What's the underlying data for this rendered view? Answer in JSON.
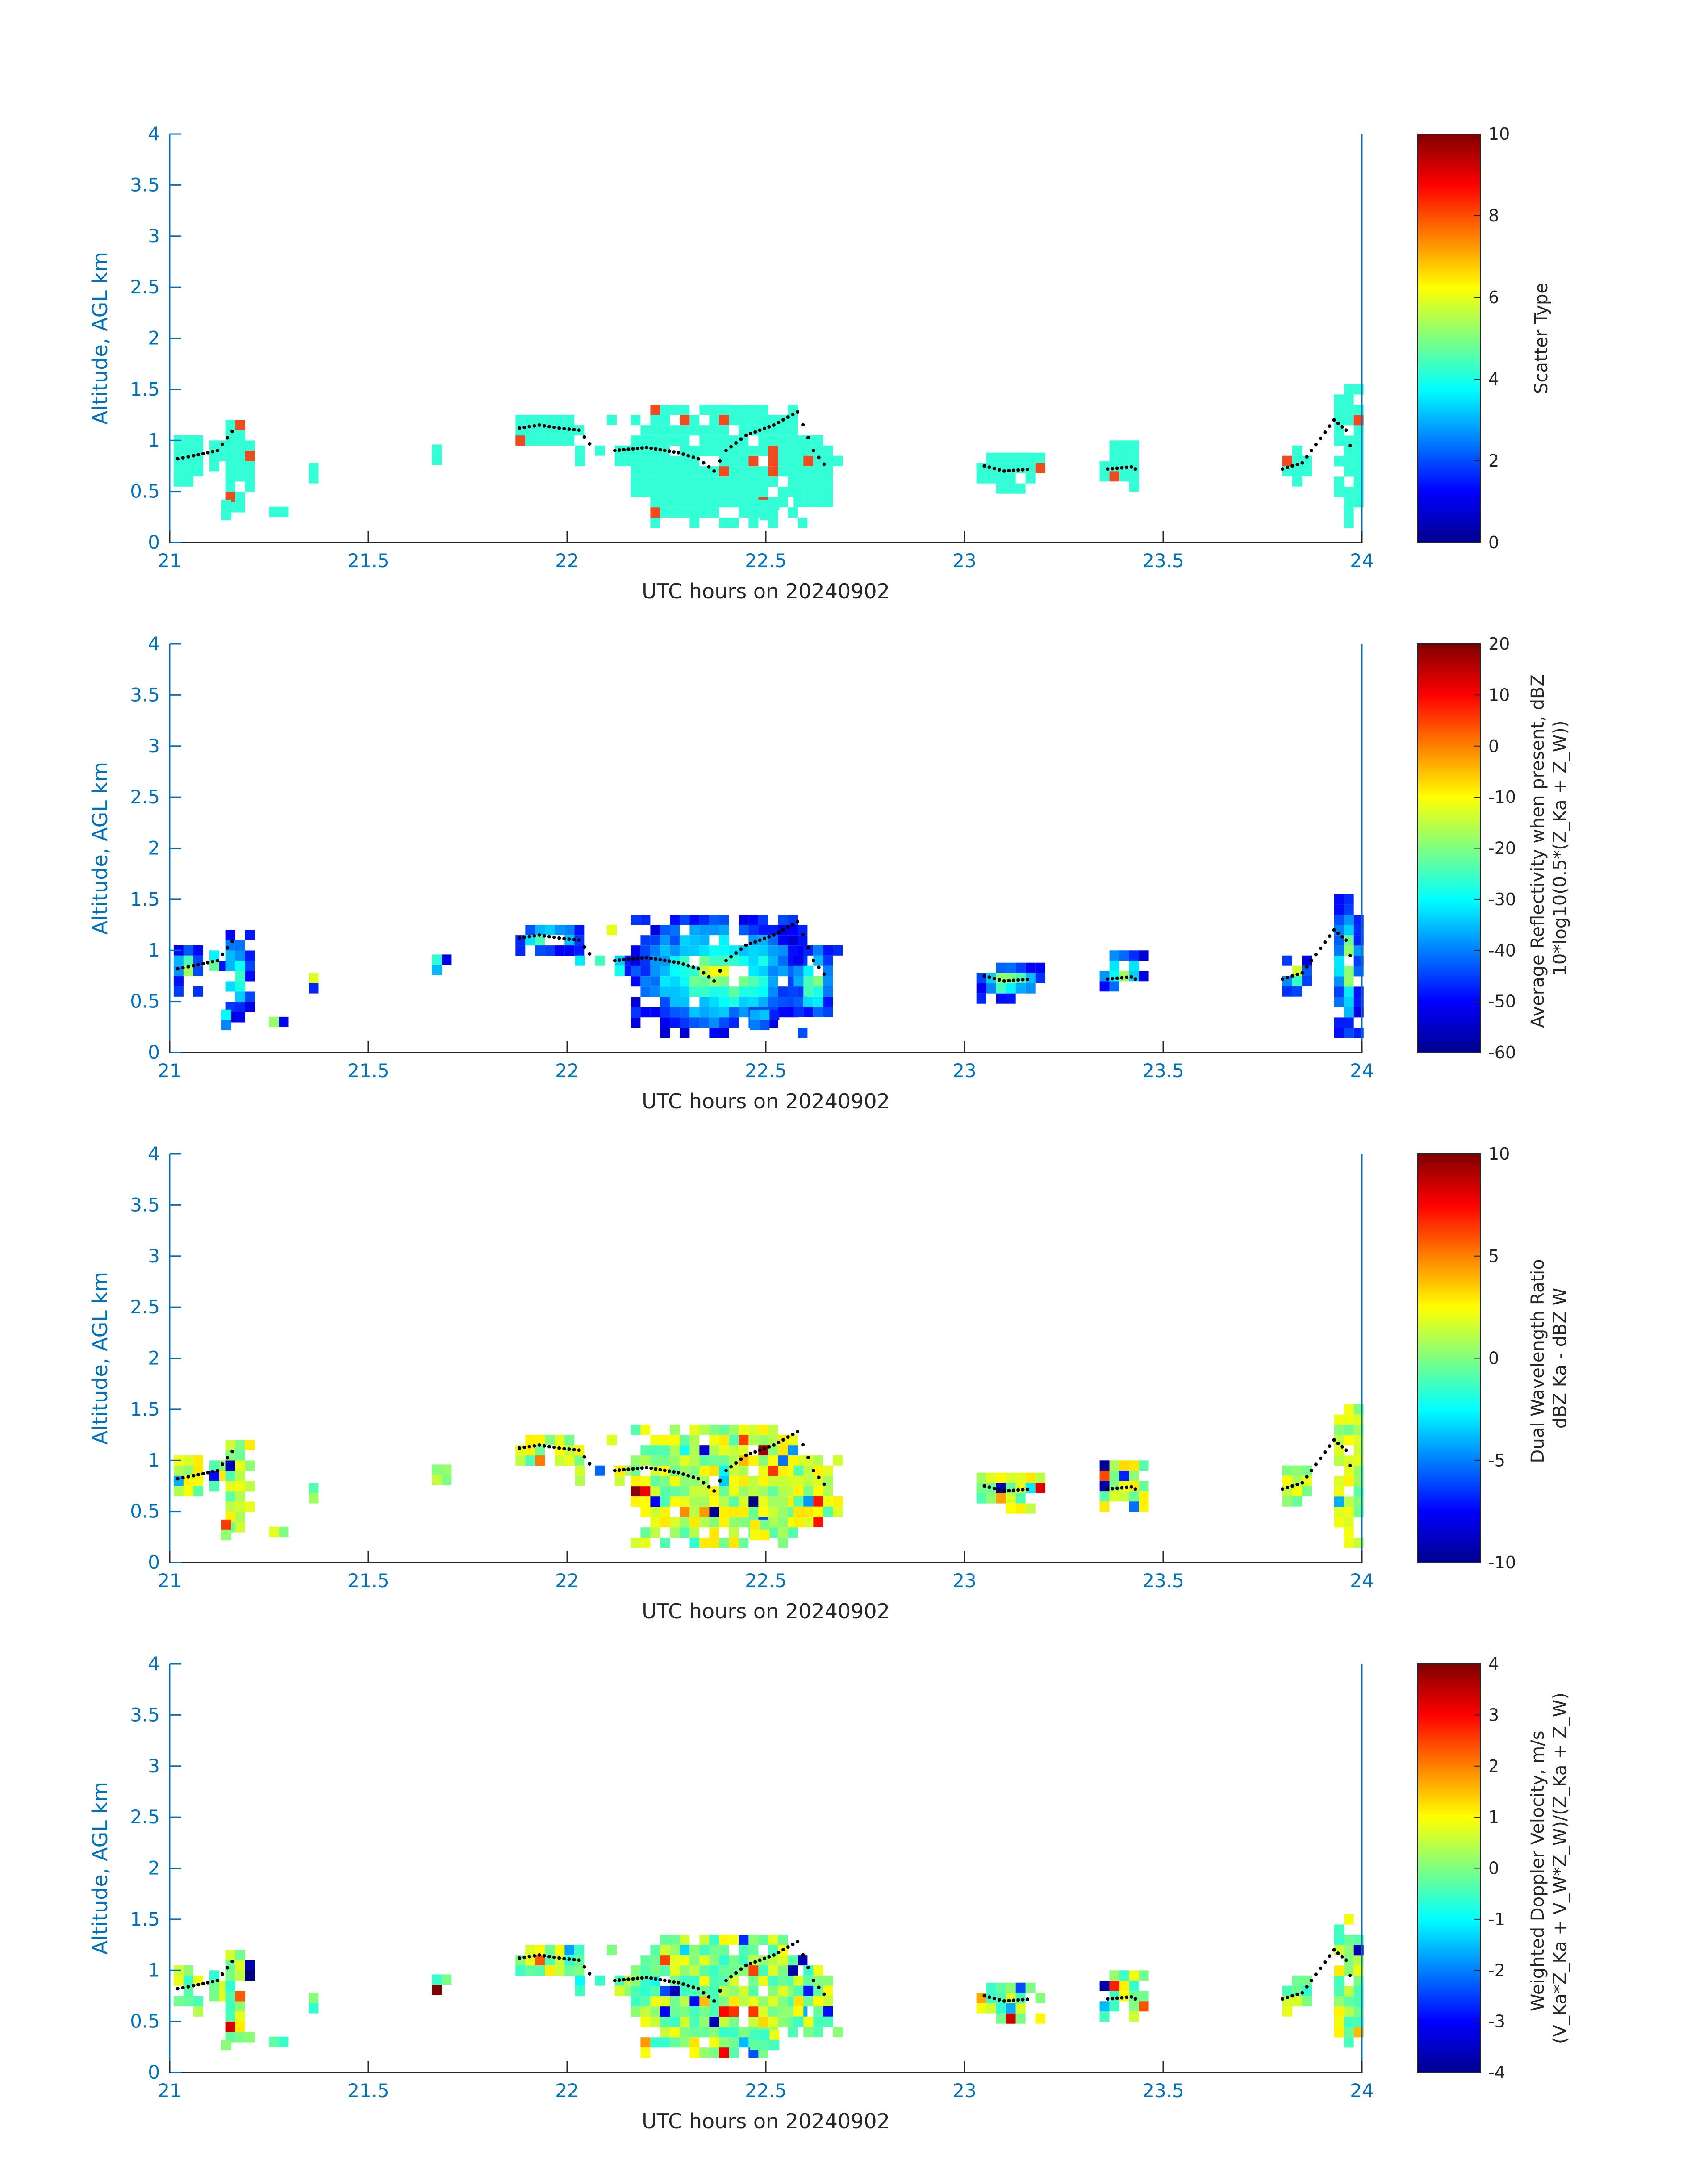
{
  "chart_data": [
    {
      "type": "heatmap",
      "xlabel": "UTC hours on 20240902",
      "ylabel": "Altitude, AGL km",
      "xlim": [
        21,
        24
      ],
      "ylim": [
        0,
        4
      ],
      "xticks": [
        "21",
        "21.5",
        "22",
        "22.5",
        "23",
        "23.5",
        "24"
      ],
      "yticks": [
        "0",
        "0.5",
        "1",
        "1.5",
        "2",
        "2.5",
        "3",
        "3.5",
        "4"
      ],
      "colorbar": {
        "label_lines": [
          "Scatter Type"
        ],
        "limits": [
          0,
          10
        ],
        "ticks": [
          "0",
          "2",
          "4",
          "6",
          "8",
          "10"
        ]
      },
      "mode": "scatter",
      "grid": false
    },
    {
      "type": "heatmap",
      "xlabel": "UTC hours on 20240902",
      "ylabel": "Altitude, AGL km",
      "xlim": [
        21,
        24
      ],
      "ylim": [
        0,
        4
      ],
      "xticks": [
        "21",
        "21.5",
        "22",
        "22.5",
        "23",
        "23.5",
        "24"
      ],
      "yticks": [
        "0",
        "0.5",
        "1",
        "1.5",
        "2",
        "2.5",
        "3",
        "3.5",
        "4"
      ],
      "colorbar": {
        "label_lines": [
          "Average Reflectivity when present, dBZ",
          "10*log10(0.5*(Z_Ka + Z_W))"
        ],
        "limits": [
          -60,
          20
        ],
        "ticks": [
          "-60",
          "-50",
          "-40",
          "-30",
          "-20",
          "-10",
          "0",
          "10",
          "20"
        ]
      },
      "mode": "refl",
      "grid": false
    },
    {
      "type": "heatmap",
      "xlabel": "UTC hours on 20240902",
      "ylabel": "Altitude, AGL km",
      "xlim": [
        21,
        24
      ],
      "ylim": [
        0,
        4
      ],
      "xticks": [
        "21",
        "21.5",
        "22",
        "22.5",
        "23",
        "23.5",
        "24"
      ],
      "yticks": [
        "0",
        "0.5",
        "1",
        "1.5",
        "2",
        "2.5",
        "3",
        "3.5",
        "4"
      ],
      "colorbar": {
        "label_lines": [
          "Dual Wavelength Ratio",
          "dBZ Ka - dBZ W"
        ],
        "limits": [
          -10,
          10
        ],
        "ticks": [
          "-10",
          "-5",
          "0",
          "5",
          "10"
        ]
      },
      "mode": "dwr",
      "grid": false
    },
    {
      "type": "heatmap",
      "xlabel": "UTC hours on 20240902",
      "ylabel": "Altitude, AGL km",
      "xlim": [
        21,
        24
      ],
      "ylim": [
        0,
        4
      ],
      "xticks": [
        "21",
        "21.5",
        "22",
        "22.5",
        "23",
        "23.5",
        "24"
      ],
      "yticks": [
        "0",
        "0.5",
        "1",
        "1.5",
        "2",
        "2.5",
        "3",
        "3.5",
        "4"
      ],
      "colorbar": {
        "label_lines": [
          "Weighted Doppler Velocity, m/s",
          "(V_Ka*Z_Ka + V_W*Z_W)/(Z_Ka + Z_W)"
        ],
        "limits": [
          -4,
          4
        ],
        "ticks": [
          "-4",
          "-3",
          "-2",
          "-1",
          "0",
          "1",
          "2",
          "3",
          "4"
        ]
      },
      "mode": "vel",
      "grid": false
    }
  ],
  "echo_regions": [
    {
      "x0": 21.01,
      "x1": 21.08,
      "y0": 0.62,
      "y1": 1.05
    },
    {
      "x0": 21.1,
      "x1": 21.13,
      "y0": 0.75,
      "y1": 1.0
    },
    {
      "x0": 21.14,
      "x1": 21.19,
      "y0": 0.3,
      "y1": 1.2
    },
    {
      "x0": 21.13,
      "x1": 21.15,
      "y0": 0.25,
      "y1": 0.42
    },
    {
      "x0": 21.25,
      "x1": 21.28,
      "y0": 0.3,
      "y1": 0.35
    },
    {
      "x0": 21.35,
      "x1": 21.37,
      "y0": 0.67,
      "y1": 0.78
    },
    {
      "x0": 21.66,
      "x1": 21.69,
      "y0": 0.78,
      "y1": 0.96
    },
    {
      "x0": 21.87,
      "x1": 22.04,
      "y0": 0.98,
      "y1": 1.25
    },
    {
      "x0": 22.02,
      "x1": 22.04,
      "y0": 0.75,
      "y1": 0.95
    },
    {
      "x0": 22.07,
      "x1": 22.08,
      "y0": 0.85,
      "y1": 0.95
    },
    {
      "x0": 22.1,
      "x1": 22.12,
      "y0": 1.15,
      "y1": 1.25
    },
    {
      "x0": 22.12,
      "x1": 22.15,
      "y0": 0.75,
      "y1": 0.95
    },
    {
      "x0": 22.16,
      "x1": 22.6,
      "y0": 0.2,
      "y1": 1.35
    },
    {
      "x0": 22.57,
      "x1": 22.67,
      "y0": 0.35,
      "y1": 1.05
    },
    {
      "x0": 22.46,
      "x1": 22.51,
      "y0": 0.25,
      "y1": 0.42
    },
    {
      "x0": 23.03,
      "x1": 23.19,
      "y0": 0.52,
      "y1": 0.88
    },
    {
      "x0": 23.34,
      "x1": 23.45,
      "y0": 0.58,
      "y1": 1.0
    },
    {
      "x0": 23.8,
      "x1": 23.87,
      "y0": 0.6,
      "y1": 0.95
    },
    {
      "x0": 23.93,
      "x1": 24.0,
      "y0": 0.2,
      "y1": 1.55
    }
  ],
  "layer_tracks": [
    [
      [
        21.02,
        0.82
      ],
      [
        21.06,
        0.85
      ],
      [
        21.12,
        0.9
      ],
      [
        21.17,
        1.15
      ]
    ],
    [
      [
        21.88,
        1.12
      ],
      [
        21.93,
        1.15
      ],
      [
        21.98,
        1.12
      ],
      [
        22.03,
        1.1
      ],
      [
        22.07,
        0.9
      ]
    ],
    [
      [
        22.12,
        0.9
      ],
      [
        22.2,
        0.93
      ],
      [
        22.28,
        0.88
      ],
      [
        22.33,
        0.82
      ],
      [
        22.37,
        0.7
      ],
      [
        22.4,
        0.9
      ],
      [
        22.45,
        1.05
      ],
      [
        22.52,
        1.15
      ],
      [
        22.58,
        1.28
      ],
      [
        22.62,
        0.9
      ],
      [
        22.66,
        0.7
      ]
    ],
    [
      [
        23.05,
        0.75
      ],
      [
        23.1,
        0.7
      ],
      [
        23.17,
        0.72
      ]
    ],
    [
      [
        23.36,
        0.72
      ],
      [
        23.42,
        0.74
      ],
      [
        23.44,
        0.7
      ]
    ],
    [
      [
        23.8,
        0.72
      ],
      [
        23.85,
        0.78
      ],
      [
        23.93,
        1.2
      ],
      [
        23.96,
        1.1
      ],
      [
        23.98,
        0.8
      ]
    ]
  ]
}
